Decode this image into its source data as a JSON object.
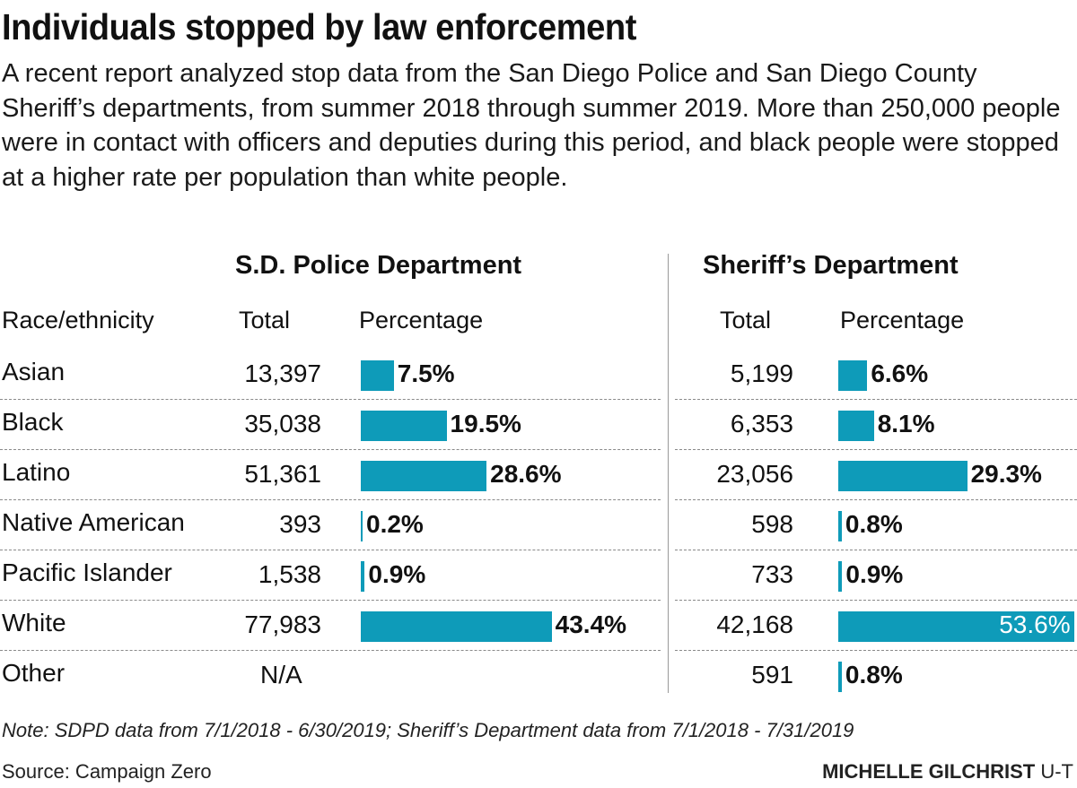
{
  "title": "Individuals stopped by law enforcement",
  "subtitle": "A recent report analyzed stop data from the San Diego Police and San Diego County Sheriff’s departments, from summer 2018 through summer 2019. More than 250,000 people were in contact with officers and deputies during this period, and black people were stopped at a higher rate per population than white people.",
  "columns": {
    "race": "Race/ethnicity",
    "total": "Total",
    "percentage": "Percentage"
  },
  "colors": {
    "bar": "#0e9bb9"
  },
  "chart_data": [
    {
      "type": "table",
      "title": "S.D. Police Department",
      "rows": [
        {
          "race": "Asian",
          "total": "13,397",
          "pct": 7.5,
          "pct_label": "7.5%"
        },
        {
          "race": "Black",
          "total": "35,038",
          "pct": 19.5,
          "pct_label": "19.5%"
        },
        {
          "race": "Latino",
          "total": "51,361",
          "pct": 28.6,
          "pct_label": "28.6%"
        },
        {
          "race": "Native American",
          "total": "393",
          "pct": 0.2,
          "pct_label": "0.2%"
        },
        {
          "race": "Pacific Islander",
          "total": "1,538",
          "pct": 0.9,
          "pct_label": "0.9%"
        },
        {
          "race": "White",
          "total": "77,983",
          "pct": 43.4,
          "pct_label": "43.4%"
        },
        {
          "race": "Other",
          "total": "N/A",
          "pct": null,
          "pct_label": ""
        }
      ]
    },
    {
      "type": "table",
      "title": "Sheriff’s Department",
      "rows": [
        {
          "race": "Asian",
          "total": "5,199",
          "pct": 6.6,
          "pct_label": "6.6%"
        },
        {
          "race": "Black",
          "total": "6,353",
          "pct": 8.1,
          "pct_label": "8.1%"
        },
        {
          "race": "Latino",
          "total": "23,056",
          "pct": 29.3,
          "pct_label": "29.3%"
        },
        {
          "race": "Native American",
          "total": "598",
          "pct": 0.8,
          "pct_label": "0.8%"
        },
        {
          "race": "Pacific Islander",
          "total": "733",
          "pct": 0.9,
          "pct_label": "0.9%"
        },
        {
          "race": "White",
          "total": "42,168",
          "pct": 53.6,
          "pct_label": "53.6%"
        },
        {
          "race": "Other",
          "total": "591",
          "pct": 0.8,
          "pct_label": "0.8%"
        }
      ]
    }
  ],
  "note": "Note: SDPD data from 7/1/2018 - 6/30/2019; Sheriff’s Department data from 7/1/2018 - 7/31/2019",
  "source": "Source: Campaign Zero",
  "credit": {
    "name": "MICHELLE GILCHRIST",
    "org": "U-T"
  }
}
